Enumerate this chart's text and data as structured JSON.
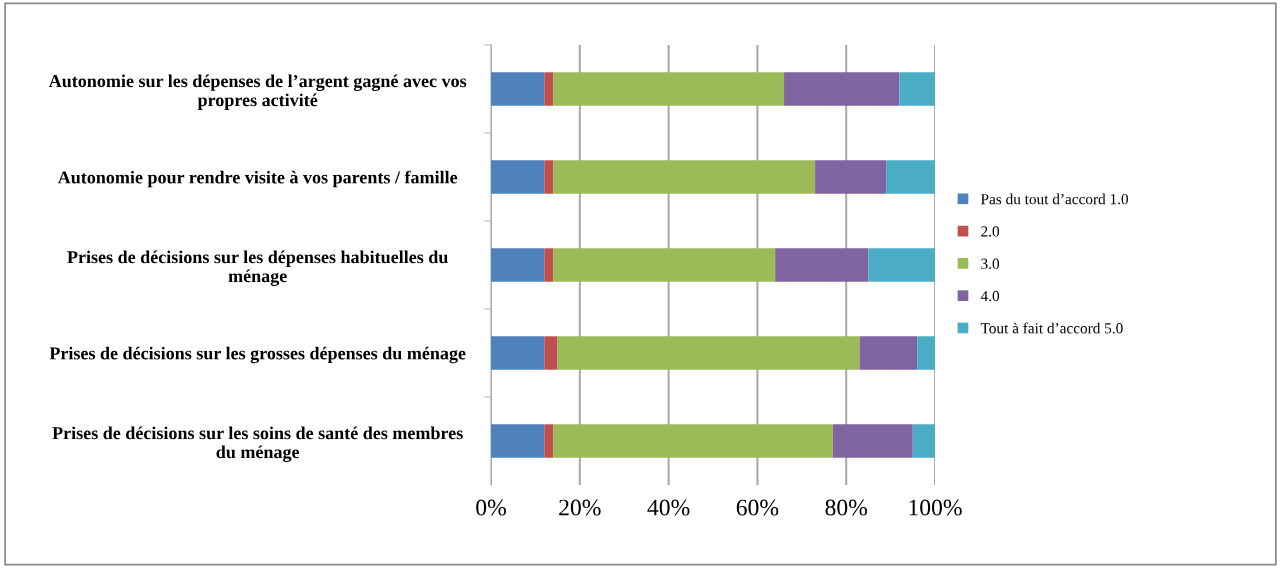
{
  "chart_data": {
    "type": "bar",
    "orientation": "horizontal",
    "stacked": true,
    "categories": [
      "Autonomie sur les dépenses de l’argent gagné avec vos propres activité",
      "Autonomie pour rendre visite à vos parents / famille",
      "Prises de décisions sur les dépenses habituelles du ménage",
      "Prises de décisions sur les grosses dépenses du ménage",
      "Prises de décisions sur les soins de santé des membres du ménage"
    ],
    "series": [
      {
        "name": "Pas du tout d’accord 1.0",
        "color": "#4f81bd",
        "values": [
          12,
          12,
          12,
          12,
          12
        ]
      },
      {
        "name": "2.0",
        "color": "#c0504d",
        "values": [
          2,
          2,
          2,
          3,
          2
        ]
      },
      {
        "name": "3.0",
        "color": "#9bbb59",
        "values": [
          52,
          59,
          50,
          68,
          63
        ]
      },
      {
        "name": "4.0",
        "color": "#8064a2",
        "values": [
          26,
          16,
          21,
          13,
          18
        ]
      },
      {
        "name": "Tout à fait d’accord 5.0",
        "color": "#4bacc6",
        "values": [
          8,
          11,
          15,
          4,
          5
        ]
      }
    ],
    "xlim": [
      0,
      100
    ],
    "xticks": [
      {
        "value": 0,
        "label": "0%"
      },
      {
        "value": 20,
        "label": "20%"
      },
      {
        "value": 40,
        "label": "40%"
      },
      {
        "value": 60,
        "label": "60%"
      },
      {
        "value": 80,
        "label": "80%"
      },
      {
        "value": 100,
        "label": "100%"
      }
    ],
    "grid": "x",
    "legend": "right"
  }
}
